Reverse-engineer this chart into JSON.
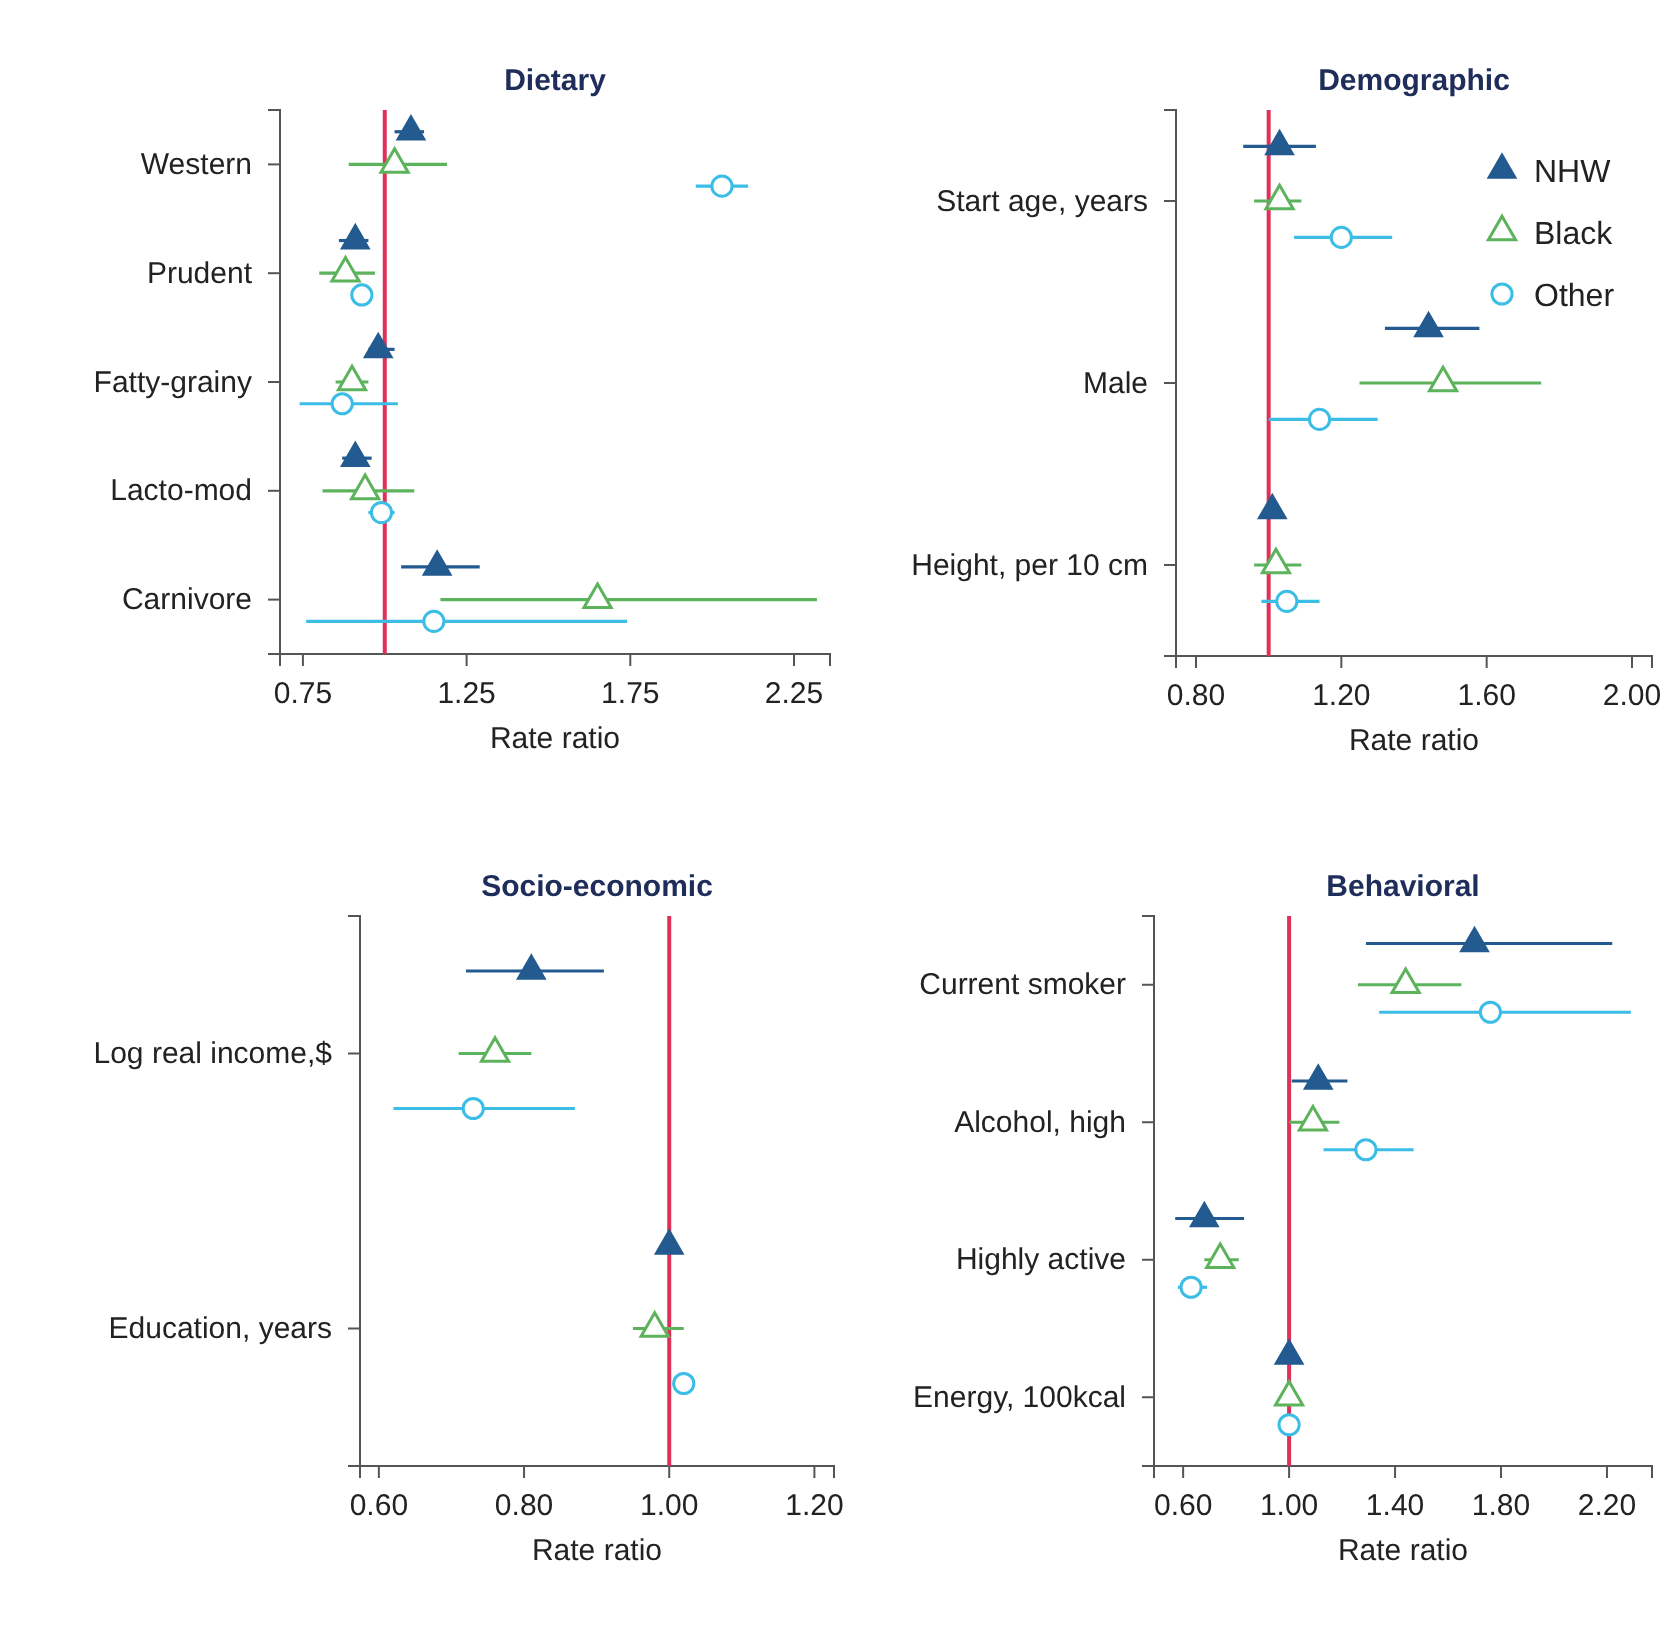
{
  "chart_data": [
    {
      "type": "scatter",
      "title": "Dietary",
      "xlabel": "Rate ratio",
      "orientation": "horizontal",
      "categories": [
        "Western",
        "Prudent",
        "Fatty-grainy",
        "Lacto-mod",
        "Carnivore"
      ],
      "xlim": [
        0.68,
        2.36
      ],
      "xticks": [
        0.75,
        1.25,
        1.75,
        2.25
      ],
      "ref_lines": [
        {
          "axis": "x",
          "value": 1,
          "color": "#e0305a"
        }
      ],
      "series": [
        {
          "color": "#235a8f",
          "marker": "triangle",
          "values": [
            1.08,
            0.91,
            0.98,
            0.91,
            1.16
          ],
          "errors": [
            [
              1.03,
              1.12
            ],
            [
              0.86,
              0.95
            ],
            [
              0.95,
              1.03
            ],
            [
              0.87,
              0.96
            ],
            [
              1.05,
              1.29
            ]
          ]
        },
        {
          "color": "#5cb35c",
          "marker": "triangle-open",
          "values": [
            1.03,
            0.88,
            0.9,
            0.94,
            1.65
          ],
          "errors": [
            [
              0.89,
              1.19
            ],
            [
              0.8,
              0.97
            ],
            [
              0.85,
              0.95
            ],
            [
              0.81,
              1.09
            ],
            [
              1.17,
              2.32
            ]
          ]
        },
        {
          "color": "#3bbde6",
          "marker": "circle-open",
          "values": [
            2.03,
            0.93,
            0.87,
            0.99,
            1.15
          ],
          "errors": [
            [
              1.95,
              2.11
            ],
            [
              0.91,
              0.96
            ],
            [
              0.74,
              1.04
            ],
            [
              0.95,
              1.03
            ],
            [
              0.76,
              1.74
            ]
          ]
        }
      ]
    },
    {
      "type": "scatter",
      "title": "Demographic",
      "xlabel": "Rate ratio",
      "orientation": "horizontal",
      "legend": "top right",
      "categories": [
        "Start age, years",
        "Male",
        "Height, per 10 cm"
      ],
      "xlim": [
        0.745,
        2.055
      ],
      "xticks": [
        {
          "value": 0.8,
          "label": "0.80"
        },
        {
          "value": 1.2,
          "label": "1.20"
        },
        {
          "value": 1.6,
          "label": "1.60"
        },
        {
          "value": 2,
          "label": "2.00"
        }
      ],
      "ref_lines": [
        {
          "axis": "x",
          "value": 1,
          "color": "#e0305a"
        }
      ],
      "series": [
        {
          "name": "NHW",
          "color": "#235a8f",
          "marker": "triangle",
          "values": [
            1.03,
            1.44,
            1.01
          ],
          "errors": [
            [
              0.93,
              1.13
            ],
            [
              1.32,
              1.58
            ],
            null
          ]
        },
        {
          "name": "Black",
          "color": "#5cb35c",
          "marker": "triangle-open",
          "values": [
            1.03,
            1.48,
            1.02
          ],
          "errors": [
            [
              0.96,
              1.09
            ],
            [
              1.25,
              1.75
            ],
            [
              0.96,
              1.09
            ]
          ]
        },
        {
          "name": "Other",
          "color": "#3bbde6",
          "marker": "circle-open",
          "values": [
            1.2,
            1.14,
            1.05
          ],
          "errors": [
            [
              1.07,
              1.34
            ],
            [
              1,
              1.3
            ],
            [
              0.98,
              1.14
            ]
          ]
        }
      ]
    },
    {
      "type": "scatter",
      "title": "Socio-economic",
      "xlabel": "Rate ratio",
      "orientation": "horizontal",
      "categories": [
        "Log real income,$",
        "Education, years"
      ],
      "xlim": [
        0.574,
        1.227
      ],
      "xticks": [
        {
          "value": 0.6,
          "label": "0.60"
        },
        {
          "value": 0.8,
          "label": "0.80"
        },
        {
          "value": 1,
          "label": "1.00"
        },
        {
          "value": 1.2,
          "label": "1.20"
        }
      ],
      "ref_lines": [
        {
          "axis": "x",
          "value": 1,
          "color": "#e0305a"
        }
      ],
      "series": [
        {
          "color": "#235a8f",
          "marker": "triangle",
          "values": [
            0.81,
            1
          ],
          "errors": [
            [
              0.72,
              0.91
            ],
            null
          ]
        },
        {
          "color": "#5cb35c",
          "marker": "triangle-open",
          "values": [
            0.76,
            0.98
          ],
          "errors": [
            [
              0.71,
              0.81
            ],
            [
              0.95,
              1.02
            ]
          ]
        },
        {
          "color": "#3bbde6",
          "marker": "circle-open",
          "values": [
            0.73,
            1.02
          ],
          "errors": [
            [
              0.62,
              0.87
            ],
            [
              1.005,
              1.03
            ]
          ]
        }
      ]
    },
    {
      "type": "scatter",
      "title": "Behavioral",
      "xlabel": "Rate ratio",
      "orientation": "horizontal",
      "categories": [
        "Current smoker",
        "Alcohol, high",
        "Highly active",
        "Energy, 100kcal"
      ],
      "xlim": [
        0.49,
        2.37
      ],
      "xticks": [
        {
          "value": 0.6,
          "label": "0.60"
        },
        {
          "value": 1,
          "label": "1.00"
        },
        {
          "value": 1.4,
          "label": "1.40"
        },
        {
          "value": 1.8,
          "label": "1.80"
        },
        {
          "value": 2.2,
          "label": "2.20"
        }
      ],
      "ref_lines": [
        {
          "axis": "x",
          "value": 1,
          "color": "#e0305a"
        }
      ],
      "series": [
        {
          "color": "#235a8f",
          "marker": "triangle",
          "values": [
            1.7,
            1.11,
            0.68,
            1
          ],
          "errors": [
            [
              1.29,
              2.22
            ],
            [
              1.01,
              1.22
            ],
            [
              0.57,
              0.83
            ],
            null
          ]
        },
        {
          "color": "#5cb35c",
          "marker": "triangle-open",
          "values": [
            1.44,
            1.09,
            0.74,
            1
          ],
          "errors": [
            [
              1.26,
              1.65
            ],
            [
              1,
              1.19
            ],
            [
              0.68,
              0.81
            ],
            null
          ]
        },
        {
          "color": "#3bbde6",
          "marker": "circle-open",
          "values": [
            1.76,
            1.29,
            0.63,
            1
          ],
          "errors": [
            [
              1.34,
              2.29
            ],
            [
              1.13,
              1.47
            ],
            [
              0.58,
              0.69
            ],
            null
          ]
        }
      ]
    }
  ]
}
